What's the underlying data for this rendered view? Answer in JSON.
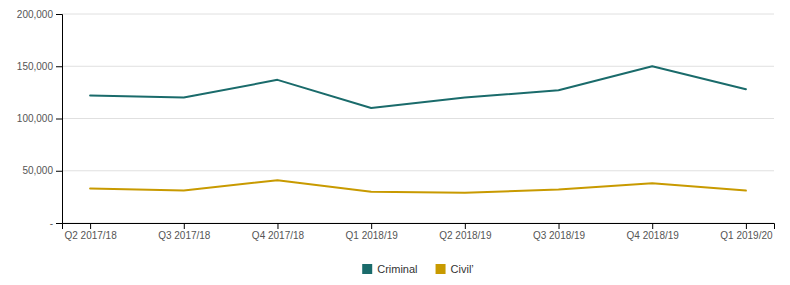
{
  "chart_data": {
    "type": "line",
    "categories": [
      "Q2 2017/18",
      "Q3 2017/18",
      "Q4 2017/18",
      "Q1 2018/19",
      "Q2 2018/19",
      "Q3 2018/19",
      "Q4 2018/19",
      "Q1 2019/20"
    ],
    "series": [
      {
        "name": "Criminal",
        "color": "#1a6b6b",
        "values": [
          122000,
          120000,
          137000,
          110000,
          120000,
          127000,
          150000,
          128000
        ]
      },
      {
        "name": "Civil’",
        "color": "#c89a00",
        "values": [
          33000,
          31000,
          41000,
          30000,
          29000,
          32000,
          38000,
          31000
        ]
      }
    ],
    "ylim": [
      0,
      200000
    ],
    "yticks": [
      {
        "value": 0,
        "label": "-"
      },
      {
        "value": 50000,
        "label": "50,000"
      },
      {
        "value": 100000,
        "label": "100,000"
      },
      {
        "value": 150000,
        "label": "150,000"
      },
      {
        "value": 200000,
        "label": "200,000"
      }
    ],
    "grid": true,
    "legend": "bottom"
  }
}
